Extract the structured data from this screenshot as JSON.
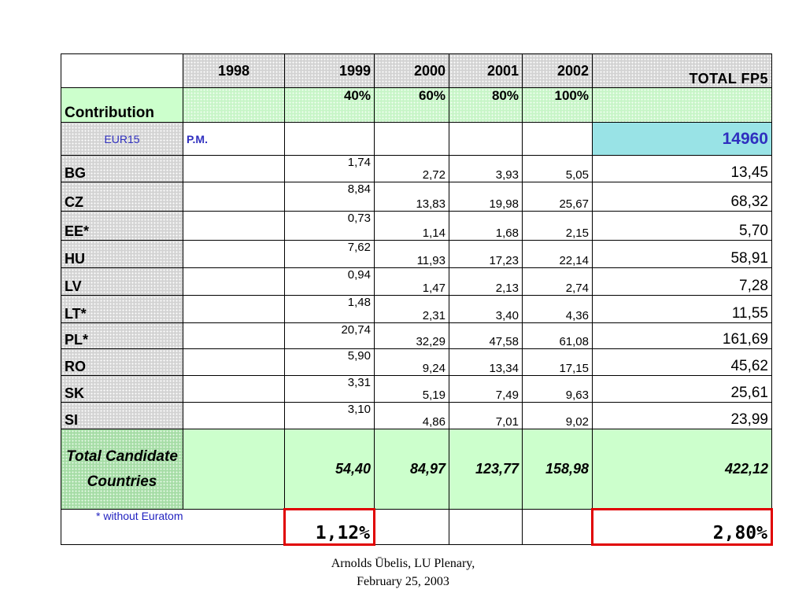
{
  "table": {
    "years": [
      "1998",
      "1999",
      "2000",
      "2001",
      "2002"
    ],
    "total_header": "TOTAL FP5",
    "contribution_label": "Contribution",
    "contribution_pcts": [
      "40%",
      "60%",
      "80%",
      "100%"
    ],
    "eur_row": {
      "label": "EUR15",
      "pm": "P.M.",
      "total": "14960"
    },
    "rows": [
      {
        "country": "BG",
        "values": [
          "1,74",
          "2,72",
          "3,93",
          "5,05"
        ],
        "total": "13,45"
      },
      {
        "country": "CZ",
        "values": [
          "8,84",
          "13,83",
          "19,98",
          "25,67"
        ],
        "total": "68,32"
      },
      {
        "country": "EE*",
        "values": [
          "0,73",
          "1,14",
          "1,68",
          "2,15"
        ],
        "total": "5,70"
      },
      {
        "country": "HU",
        "values": [
          "7,62",
          "11,93",
          "17,23",
          "22,14"
        ],
        "total": "58,91"
      },
      {
        "country": "LV",
        "values": [
          "0,94",
          "1,47",
          "2,13",
          "2,74"
        ],
        "total": "7,28"
      },
      {
        "country": "LT*",
        "values": [
          "1,48",
          "2,31",
          "3,40",
          "4,36"
        ],
        "total": "11,55"
      },
      {
        "country": "PL*",
        "values": [
          "20,74",
          "32,29",
          "47,58",
          "61,08"
        ],
        "total": "161,69"
      },
      {
        "country": "RO",
        "values": [
          "5,90",
          "9,24",
          "13,34",
          "17,15"
        ],
        "total": "45,62"
      },
      {
        "country": "SK",
        "values": [
          "3,31",
          "5,19",
          "7,49",
          "9,63"
        ],
        "total": "25,61"
      },
      {
        "country": "SI",
        "values": [
          "3,10",
          "4,86",
          "7,01",
          "9,02"
        ],
        "total": "23,99"
      }
    ],
    "sum_row": {
      "label": "Total Candidate Countries",
      "values": [
        "54,40",
        "84,97",
        "123,77",
        "158,98"
      ],
      "total": "422,12"
    },
    "footnote": "* without Euratom",
    "pct_1999": "1,12%",
    "pct_total": "2,80%"
  },
  "footer": {
    "line1": "Arnolds Ūbelis,   LU Plenary,",
    "line2": "February 25, 2003"
  }
}
